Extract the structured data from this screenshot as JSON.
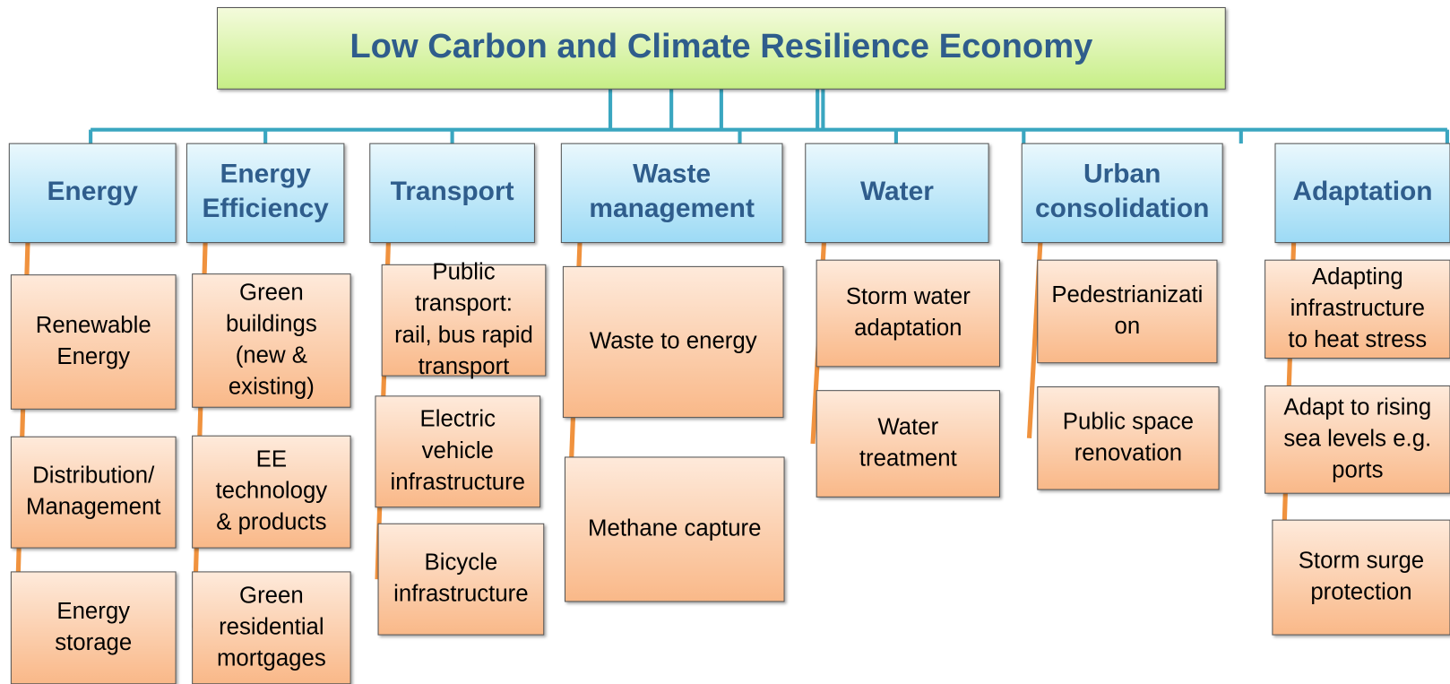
{
  "title": "Low Carbon and Climate Resilience Economy",
  "columns": [
    {
      "header": "Energy",
      "items": [
        "Renewable\nEnergy",
        "Distribution/\nManagement",
        "Energy\nstorage"
      ]
    },
    {
      "header": "Energy\nEfficiency",
      "items": [
        "Green\nbuildings\n(new &\nexisting)",
        "EE\ntechnology\n& products",
        "Green\nresidential\nmortgages"
      ]
    },
    {
      "header": "Transport",
      "items": [
        "Public\ntransport:\nrail, bus rapid\ntransport",
        "Electric\nvehicle\ninfrastructure",
        "Bicycle\ninfrastructure"
      ]
    },
    {
      "header": "Waste\nmanagement",
      "items": [
        "Waste to energy",
        "Methane capture"
      ]
    },
    {
      "header": "Water",
      "items": [
        "Storm water\nadaptation",
        "Water\ntreatment"
      ]
    },
    {
      "header": "Urban\nconsolidation",
      "items": [
        "Pedestrianizati\non",
        "Public space\nrenovation"
      ]
    },
    {
      "header": "Adaptation",
      "items": [
        "Adapting\ninfrastructure\nto heat stress",
        "Adapt to rising\nsea levels e.g.\nports",
        "Storm surge\nprotection"
      ]
    }
  ]
}
